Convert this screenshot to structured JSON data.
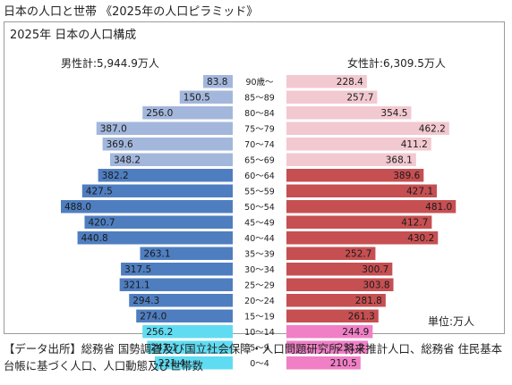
{
  "header": {
    "title": "日本の人口と世帯 《2025年の人口ピラミッド》"
  },
  "chart_data": {
    "type": "bar",
    "orientation": "population-pyramid",
    "title": "2025年 日本の人口構成",
    "unit_label": "単位:万人",
    "male_total_label": "男性計:5,944.9万人",
    "female_total_label": "女性計:6,309.5万人",
    "categories": [
      "90歳〜",
      "85〜89",
      "80〜84",
      "75〜79",
      "70〜74",
      "65〜69",
      "60〜64",
      "55〜59",
      "50〜54",
      "45〜49",
      "40〜44",
      "35〜39",
      "30〜34",
      "25〜29",
      "20〜24",
      "15〜19",
      "10〜14",
      "5〜9",
      "0〜4"
    ],
    "male_values": [
      "83.8",
      "150.5",
      "256.0",
      "387.0",
      "369.6",
      "348.2",
      "382.2",
      "427.5",
      "488.0",
      "420.7",
      "440.8",
      "263.1",
      "317.5",
      "321.1",
      "294.3",
      "274.0",
      "256.2",
      "243.1",
      "221.4"
    ],
    "female_values": [
      "228.4",
      "257.7",
      "354.5",
      "462.2",
      "411.2",
      "368.1",
      "389.6",
      "427.1",
      "481.0",
      "412.7",
      "430.2",
      "252.7",
      "300.7",
      "303.8",
      "281.8",
      "261.3",
      "244.9",
      "231.2",
      "210.5"
    ],
    "colors": {
      "male_elderly": "#a3b7dc",
      "male_working": "#4f7ec0",
      "male_child": "#5fdcf2",
      "female_elderly": "#f2c9d0",
      "female_working": "#c64f52",
      "female_child": "#f07fc6"
    }
  },
  "source": {
    "text": "【データ出所】総務省 国勢調査及び国立社会保障・人口問題研究所 将来推計人口、総務省 住民基本台帳に基づく人口、人口動態及び世帯数"
  }
}
